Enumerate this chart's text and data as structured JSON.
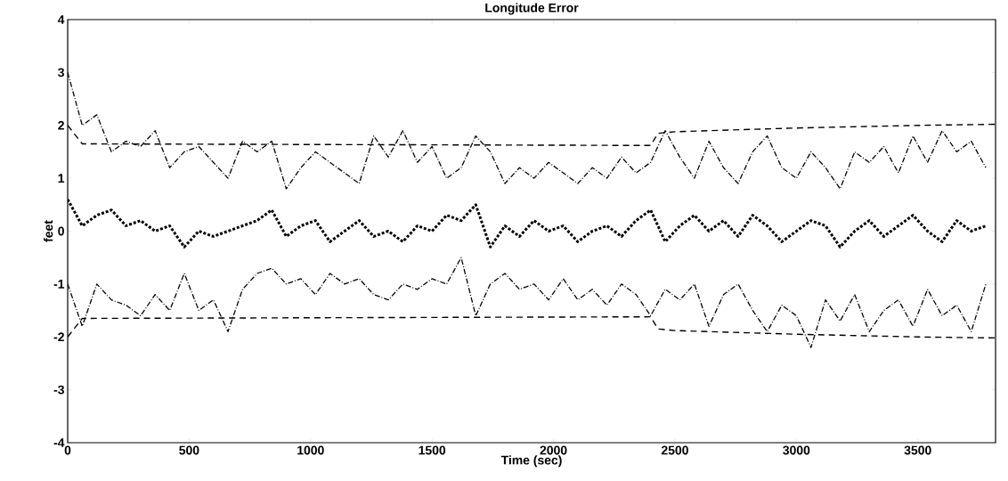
{
  "chart_data": {
    "type": "line",
    "title": "Longitude Error",
    "xlabel": "Time (sec)",
    "ylabel": "feet",
    "x": [
      0,
      60,
      120,
      180,
      240,
      300,
      360,
      420,
      480,
      540,
      600,
      660,
      720,
      780,
      840,
      900,
      960,
      1020,
      1080,
      1140,
      1200,
      1260,
      1320,
      1380,
      1440,
      1500,
      1560,
      1620,
      1680,
      1740,
      1800,
      1860,
      1920,
      1980,
      2040,
      2100,
      2160,
      2220,
      2280,
      2340,
      2400,
      2460,
      2520,
      2580,
      2640,
      2700,
      2760,
      2820,
      2880,
      2940,
      3000,
      3060,
      3120,
      3180,
      3240,
      3300,
      3360,
      3420,
      3480,
      3540,
      3600,
      3660,
      3720,
      3780
    ],
    "xlim": [
      0,
      3820
    ],
    "xticks": [
      0,
      500,
      1000,
      1500,
      2000,
      2500,
      3000,
      3500
    ],
    "ylim": [
      -4,
      4
    ],
    "yticks": [
      -4,
      -3,
      -2,
      -1,
      0,
      1,
      2,
      3,
      4
    ],
    "series": [
      {
        "color": "#000000",
        "line_style": "dashdot",
        "values": [
          3.0,
          2.0,
          2.2,
          1.5,
          1.7,
          1.6,
          1.9,
          1.2,
          1.5,
          1.6,
          1.3,
          1.0,
          1.7,
          1.5,
          1.7,
          0.8,
          1.2,
          1.5,
          1.3,
          1.1,
          0.9,
          1.8,
          1.4,
          1.9,
          1.3,
          1.6,
          1.0,
          1.2,
          1.8,
          1.5,
          0.9,
          1.2,
          1.0,
          1.3,
          1.1,
          0.9,
          1.2,
          1.0,
          1.4,
          1.1,
          1.3,
          1.9,
          1.4,
          1.0,
          1.7,
          1.2,
          0.9,
          1.5,
          1.8,
          1.2,
          1.0,
          1.5,
          1.2,
          0.8,
          1.5,
          1.3,
          1.6,
          1.1,
          1.8,
          1.3,
          1.9,
          1.5,
          1.7,
          1.2
        ]
      },
      {
        "color": "#000000",
        "line_style": "dotted",
        "values": [
          0.6,
          0.1,
          0.3,
          0.4,
          0.1,
          0.2,
          0.0,
          0.1,
          -0.3,
          0.0,
          -0.1,
          0.0,
          0.1,
          0.2,
          0.4,
          -0.1,
          0.1,
          0.2,
          -0.2,
          0.0,
          0.2,
          -0.1,
          0.0,
          -0.2,
          0.1,
          0.0,
          0.3,
          0.2,
          0.5,
          -0.3,
          0.1,
          -0.1,
          0.2,
          0.0,
          0.1,
          -0.2,
          0.0,
          0.1,
          -0.1,
          0.2,
          0.4,
          -0.2,
          0.1,
          0.3,
          0.0,
          0.2,
          -0.1,
          0.3,
          0.1,
          -0.2,
          0.0,
          0.2,
          0.1,
          -0.3,
          0.0,
          0.2,
          -0.1,
          0.1,
          0.3,
          0.0,
          -0.2,
          0.2,
          0.0,
          0.1
        ]
      },
      {
        "color": "#000000",
        "line_style": "dashdot",
        "values": [
          -1.0,
          -1.8,
          -1.0,
          -1.3,
          -1.4,
          -1.6,
          -1.2,
          -1.5,
          -0.8,
          -1.5,
          -1.3,
          -1.9,
          -1.1,
          -0.8,
          -0.7,
          -1.0,
          -0.9,
          -1.2,
          -0.8,
          -1.0,
          -0.9,
          -1.2,
          -1.3,
          -1.0,
          -1.1,
          -0.9,
          -1.0,
          -0.5,
          -1.6,
          -1.0,
          -0.8,
          -1.1,
          -1.0,
          -1.3,
          -0.9,
          -1.3,
          -1.1,
          -1.4,
          -1.0,
          -1.2,
          -1.6,
          -1.1,
          -1.3,
          -1.0,
          -1.8,
          -1.2,
          -1.0,
          -1.5,
          -1.9,
          -1.4,
          -1.6,
          -2.2,
          -1.3,
          -1.7,
          -1.2,
          -1.9,
          -1.5,
          -1.3,
          -1.8,
          -1.1,
          -1.6,
          -1.4,
          -1.9,
          -1.0
        ]
      },
      {
        "color": "#000000",
        "line_style": "dashed",
        "x": [
          0,
          60,
          2400,
          2430,
          2500,
          3000,
          3500,
          3820
        ],
        "values": [
          2.0,
          1.65,
          1.62,
          1.85,
          1.88,
          1.95,
          2.0,
          2.02
        ]
      },
      {
        "color": "#000000",
        "line_style": "dashed",
        "x": [
          0,
          60,
          2400,
          2430,
          2500,
          3000,
          3500,
          3820
        ],
        "values": [
          -2.0,
          -1.65,
          -1.62,
          -1.85,
          -1.88,
          -1.95,
          -2.0,
          -2.02
        ]
      }
    ]
  }
}
